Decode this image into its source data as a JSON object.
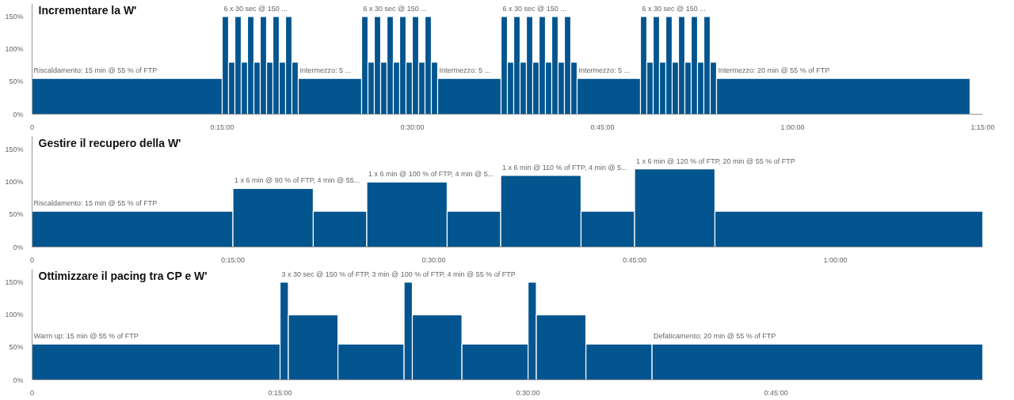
{
  "chart_data": [
    {
      "type": "histogram",
      "title": "Incrementare la W'",
      "color": "#02558f",
      "bins": [
        0,
        15,
        15.5,
        16,
        16.5,
        17,
        17.5,
        18,
        18.5,
        19,
        19.5,
        20,
        20.5,
        21,
        26,
        26.5,
        27,
        27.5,
        28,
        28.5,
        29,
        29.5,
        30,
        30.5,
        31,
        31.5,
        32,
        37,
        37.5,
        38,
        38.5,
        39,
        39.5,
        40,
        40.5,
        41,
        41.5,
        42,
        42.5,
        43,
        48,
        48.5,
        49,
        49.5,
        50,
        50.5,
        51,
        51.5,
        52,
        52.5,
        53,
        53.5,
        54,
        74
      ],
      "values": [
        55,
        150,
        80,
        150,
        80,
        150,
        80,
        150,
        80,
        150,
        80,
        150,
        80,
        55,
        150,
        80,
        150,
        80,
        150,
        80,
        150,
        80,
        150,
        80,
        150,
        80,
        55,
        150,
        80,
        150,
        80,
        150,
        80,
        150,
        80,
        150,
        80,
        150,
        80,
        55,
        150,
        80,
        150,
        80,
        150,
        80,
        150,
        80,
        150,
        80,
        150,
        80,
        55
      ],
      "xlim": [
        0,
        75
      ],
      "xticks": [
        {
          "value": 0,
          "label": "0"
        },
        {
          "value": 15,
          "label": "0:15:00"
        },
        {
          "value": 30,
          "label": "0:30:00"
        },
        {
          "value": 45,
          "label": "0:45:00"
        },
        {
          "value": 60,
          "label": "1:00:00"
        },
        {
          "value": 75,
          "label": "1:15:00"
        }
      ],
      "ylim": [
        0,
        170
      ],
      "yticks": [
        {
          "value": 0,
          "label": "0%"
        },
        {
          "value": 50,
          "label": "50%"
        },
        {
          "value": 100,
          "label": "100%"
        },
        {
          "value": 150,
          "label": "150%"
        }
      ],
      "grid": false,
      "annotations": [
        {
          "text": "Riscaldamento: 15 min @ 55 % of FTP",
          "x": 0,
          "y": 55
        },
        {
          "text": "6 x 30 sec @ 150 ...",
          "x": 15,
          "y": 150
        },
        {
          "text": "Intermezzo: 5 ...",
          "x": 21,
          "y": 55
        },
        {
          "text": "6 x 30 sec @ 150 ...",
          "x": 26,
          "y": 150
        },
        {
          "text": "Intermezzo: 5 ...",
          "x": 32,
          "y": 55
        },
        {
          "text": "6 x 30 sec @ 150 ...",
          "x": 37,
          "y": 150
        },
        {
          "text": "Intermezzo: 5 ...",
          "x": 43,
          "y": 55
        },
        {
          "text": "6 x 30 sec @ 150 ...",
          "x": 48,
          "y": 150
        },
        {
          "text": "Intermezzo: 20 min @ 55 % of FTP",
          "x": 54,
          "y": 55
        }
      ]
    },
    {
      "type": "histogram",
      "title": "Gestire il recupero della W'",
      "color": "#02558f",
      "bins": [
        0,
        15,
        21,
        25,
        31,
        35,
        41,
        45,
        51,
        71
      ],
      "values": [
        55,
        90,
        55,
        100,
        55,
        110,
        55,
        120,
        55
      ],
      "xlim": [
        0,
        71
      ],
      "xticks": [
        {
          "value": 0,
          "label": "0"
        },
        {
          "value": 15,
          "label": "0:15:00"
        },
        {
          "value": 30,
          "label": "0:30:00"
        },
        {
          "value": 45,
          "label": "0:45:00"
        },
        {
          "value": 60,
          "label": "1:00:00"
        }
      ],
      "ylim": [
        0,
        170
      ],
      "yticks": [
        {
          "value": 0,
          "label": "0%"
        },
        {
          "value": 50,
          "label": "50%"
        },
        {
          "value": 100,
          "label": "100%"
        },
        {
          "value": 150,
          "label": "150%"
        }
      ],
      "grid": false,
      "annotations": [
        {
          "text": "Riscaldamento: 15 min @ 55 % of FTP",
          "x": 0,
          "y": 55
        },
        {
          "text": "1 x 6 min @ 90 % of FTP, 4 min @ 55...",
          "x": 15,
          "y": 90
        },
        {
          "text": "1 x 6 min @ 100 % of FTP, 4 min @ 5...",
          "x": 25,
          "y": 100
        },
        {
          "text": "1 x 6 min @ 110 % of FTP, 4 min @ 5...",
          "x": 35,
          "y": 110
        },
        {
          "text": "1 x 6 min @ 120 % of FTP, 20 min @ 55 % of FTP",
          "x": 45,
          "y": 120
        }
      ]
    },
    {
      "type": "histogram",
      "title": "Ottimizzare il pacing tra CP e W'",
      "color": "#02558f",
      "bins": [
        0,
        15,
        15.5,
        18.5,
        22.5,
        23,
        26,
        30,
        30.5,
        33.5,
        37.5,
        57.5
      ],
      "values": [
        55,
        150,
        100,
        55,
        150,
        100,
        55,
        150,
        100,
        55,
        55
      ],
      "xlim": [
        0,
        57.5
      ],
      "xticks": [
        {
          "value": 0,
          "label": "0"
        },
        {
          "value": 15,
          "label": "0:15:00"
        },
        {
          "value": 30,
          "label": "0:30:00"
        },
        {
          "value": 45,
          "label": "0:45:00"
        }
      ],
      "ylim": [
        0,
        170
      ],
      "yticks": [
        {
          "value": 0,
          "label": "0%"
        },
        {
          "value": 50,
          "label": "50%"
        },
        {
          "value": 100,
          "label": "100%"
        },
        {
          "value": 150,
          "label": "150%"
        }
      ],
      "grid": false,
      "annotations": [
        {
          "text": "Warm up: 15 min @ 55 % of FTP",
          "x": 0,
          "y": 55
        },
        {
          "text": "3 x 30 sec @ 150 % of FTP, 3 min @ 100 % of FTP, 4 min @ 55 % of FTP",
          "x": 15,
          "y": 150
        },
        {
          "text": "Defaticamento: 20 min @ 55 % of FTP",
          "x": 37.5,
          "y": 55
        }
      ]
    }
  ]
}
